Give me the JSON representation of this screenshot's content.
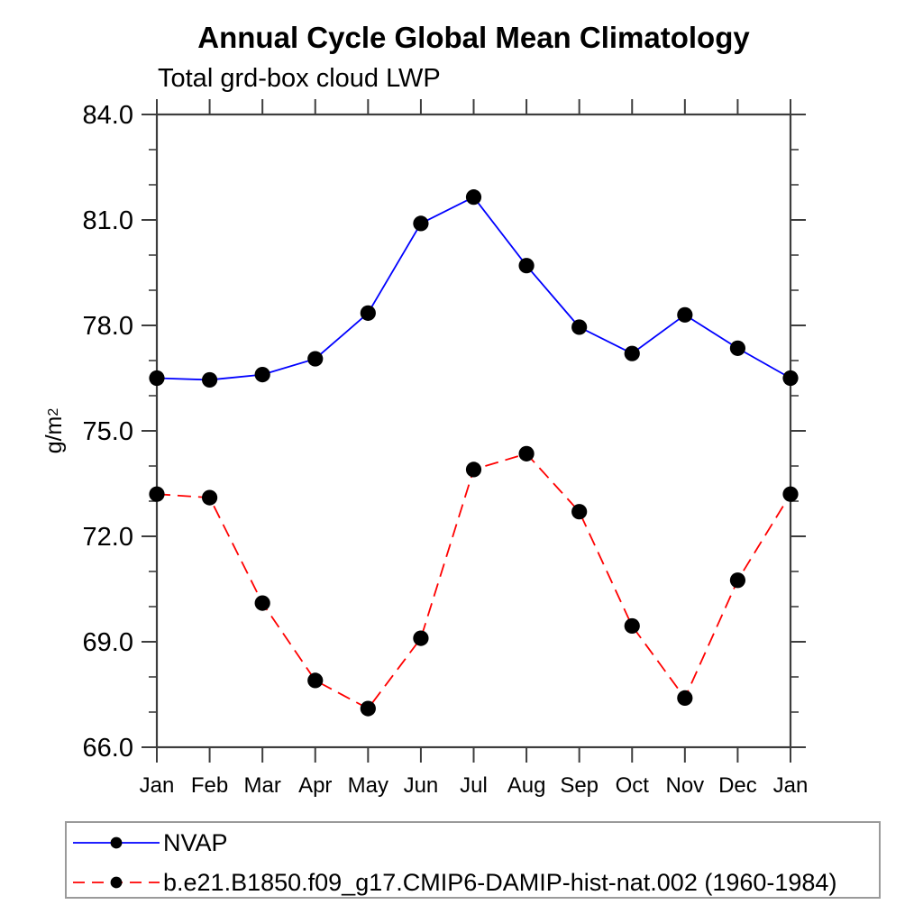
{
  "header": {
    "title": "Annual Cycle Global Mean Climatology",
    "subtitle": "Total grd-box cloud LWP"
  },
  "y_axis": {
    "label": "g/m",
    "label_superscript": "2"
  },
  "chart_data": {
    "type": "line",
    "title": "Annual Cycle Global Mean Climatology",
    "subtitle": "Total grd-box cloud LWP",
    "ylabel": "g/m²",
    "xlabel": "",
    "ylim": [
      66.0,
      84.0
    ],
    "y_major_ticks": [
      66.0,
      69.0,
      72.0,
      75.0,
      78.0,
      81.0,
      84.0
    ],
    "y_tick_labels": [
      "66.0",
      "69.0",
      "72.0",
      "75.0",
      "78.0",
      "81.0",
      "84.0"
    ],
    "y_minor_step": 1.0,
    "grid": false,
    "legend_position": "bottom-left",
    "axis_color": "#3d3d3d",
    "categories": [
      "Jan",
      "Feb",
      "Mar",
      "Apr",
      "May",
      "Jun",
      "Jul",
      "Aug",
      "Sep",
      "Oct",
      "Nov",
      "Dec",
      "Jan"
    ],
    "series": [
      {
        "name": "NVAP",
        "line_style": "solid",
        "line_color": "#0000ff",
        "marker": "filled-circle",
        "marker_color": "#000000",
        "values": [
          76.5,
          76.45,
          76.6,
          77.05,
          78.35,
          80.9,
          81.65,
          79.7,
          77.95,
          77.2,
          78.3,
          77.35,
          76.5
        ]
      },
      {
        "name": "b.e21.B1850.f09_g17.CMIP6-DAMIP-hist-nat.002 (1960-1984)",
        "line_style": "dashed",
        "line_color": "#ff0000",
        "marker": "filled-circle",
        "marker_color": "#000000",
        "values": [
          73.2,
          73.1,
          70.1,
          67.9,
          67.1,
          69.1,
          73.9,
          74.35,
          72.7,
          69.45,
          67.4,
          70.75,
          73.2
        ]
      }
    ]
  }
}
